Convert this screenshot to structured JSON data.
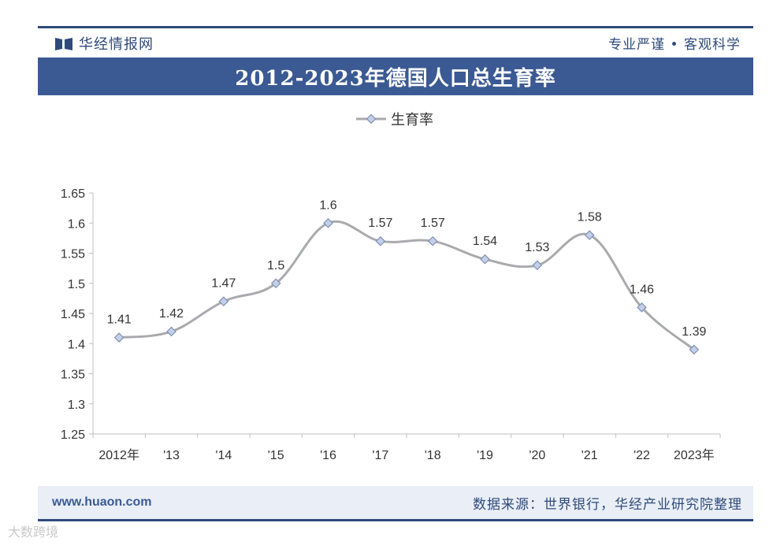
{
  "brand": {
    "name": "华经情报网",
    "slogan": "专业严谨 • 客观科学"
  },
  "footer": {
    "url": "www.huaon.com",
    "source": "数据来源：世界银行，华经产业研究院整理"
  },
  "watermark": {
    "corner_text": "大数跨境"
  },
  "colors": {
    "title_band": "#3b5a93",
    "brand": "#2f4a7a",
    "line": "#a9aaad",
    "marker_fill": "#c3cfe8",
    "marker_stroke": "#8091b4",
    "footer_bg": "#e9eef7"
  },
  "chart_data": {
    "type": "line",
    "title": "2012-2023年德国人口总生育率",
    "categories": [
      "2012年",
      "'13",
      "'14",
      "'15",
      "'16",
      "'17",
      "'18",
      "'19",
      "'20",
      "'21",
      "'22",
      "2023年"
    ],
    "series": [
      {
        "name": "生育率",
        "values": [
          1.41,
          1.42,
          1.47,
          1.5,
          1.6,
          1.57,
          1.57,
          1.54,
          1.53,
          1.58,
          1.46,
          1.39
        ]
      }
    ],
    "data_labels": [
      "1.41",
      "1.42",
      "1.47",
      "1.5",
      "1.6",
      "1.57",
      "1.57",
      "1.54",
      "1.53",
      "1.58",
      "1.46",
      "1.39"
    ],
    "y_ticks": [
      "1.25",
      "1.3",
      "1.35",
      "1.4",
      "1.45",
      "1.5",
      "1.55",
      "1.6",
      "1.65"
    ],
    "ylim": [
      1.25,
      1.65
    ],
    "grid": false,
    "legend": "top-center",
    "smooth": true
  }
}
